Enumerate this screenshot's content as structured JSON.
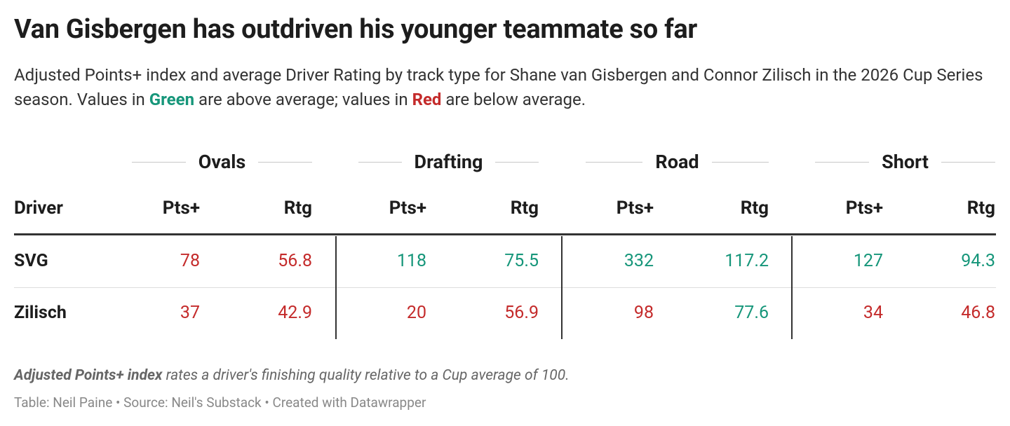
{
  "header": {
    "title": "Van Gisbergen has outdriven his younger teammate so far",
    "description": [
      {
        "text": "Adjusted Points+ index and average Driver Rating by track type for Shane van Gisbergen and Connor Zilisch in the 2026 Cup Series season. Values in "
      },
      {
        "text": "Green",
        "color": "#16967a",
        "bold": true
      },
      {
        "text": " are above average; values in "
      },
      {
        "text": "Red",
        "color": "#c42b2b",
        "bold": true
      },
      {
        "text": " are below average."
      }
    ]
  },
  "table": {
    "driver_header": "Driver",
    "groups": [
      {
        "name": "Ovals",
        "columns": [
          "Pts+",
          "Rtg"
        ]
      },
      {
        "name": "Drafting",
        "columns": [
          "Pts+",
          "Rtg"
        ]
      },
      {
        "name": "Road",
        "columns": [
          "Pts+",
          "Rtg"
        ]
      },
      {
        "name": "Short",
        "columns": [
          "Pts+",
          "Rtg"
        ]
      }
    ],
    "rows": [
      {
        "driver": "SVG",
        "cells": [
          {
            "value": 78,
            "color": "#c42b2b"
          },
          {
            "value": 56.8,
            "color": "#c42b2b"
          },
          {
            "value": 118,
            "color": "#16967a"
          },
          {
            "value": 75.5,
            "color": "#16967a"
          },
          {
            "value": 332,
            "color": "#16967a"
          },
          {
            "value": 117.2,
            "color": "#16967a"
          },
          {
            "value": 127,
            "color": "#16967a"
          },
          {
            "value": 94.3,
            "color": "#16967a"
          }
        ]
      },
      {
        "driver": "Zilisch",
        "cells": [
          {
            "value": 37,
            "color": "#c42b2b"
          },
          {
            "value": 42.9,
            "color": "#c42b2b"
          },
          {
            "value": 20,
            "color": "#c42b2b"
          },
          {
            "value": 56.9,
            "color": "#c42b2b"
          },
          {
            "value": 98,
            "color": "#c42b2b"
          },
          {
            "value": 77.6,
            "color": "#16967a"
          },
          {
            "value": 34,
            "color": "#c42b2b"
          },
          {
            "value": 46.8,
            "color": "#c42b2b"
          }
        ]
      }
    ]
  },
  "footer": {
    "note_bold": "Adjusted Points+ index",
    "note": " rates a driver's finishing quality relative to a Cup average of 100.",
    "source": "Table: Neil Paine • Source: Neil's Substack • Created with Datawrapper"
  }
}
